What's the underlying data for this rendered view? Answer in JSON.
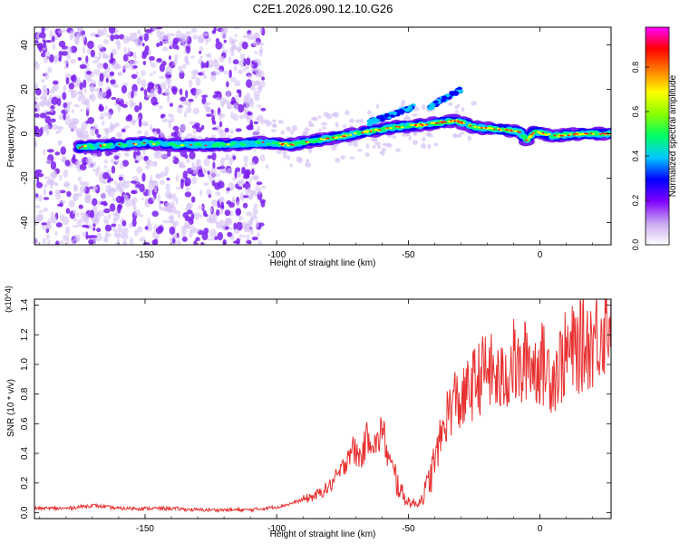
{
  "figure": {
    "title": "C2E1.2026.090.12.10.G26"
  },
  "colorbar": {
    "label": "Normalized spectral amplitude",
    "ticks": [
      "0.0",
      "0.2",
      "0.4",
      "0.6",
      "0.8"
    ],
    "colors": [
      "#ffffff",
      "#c8a8f0",
      "#8000ff",
      "#0000ff",
      "#00c8ff",
      "#00ff66",
      "#88ff00",
      "#ffff00",
      "#ff8000",
      "#ff0000",
      "#ff00ff"
    ]
  },
  "chart_data": [
    {
      "type": "heatmap",
      "title": "C2E1.2026.090.12.10.G26",
      "xlabel": "Height of straight line (km)",
      "ylabel": "Frequency (Hz)",
      "xlim": [
        -192,
        27
      ],
      "ylim": [
        -50,
        48
      ],
      "xticks": [
        "-150",
        "-100",
        "-50",
        "0"
      ],
      "yticks": [
        "-40",
        "-20",
        "0",
        "20",
        "40"
      ],
      "ridge": {
        "x": [
          -175,
          -160,
          -150,
          -140,
          -120,
          -105,
          -95,
          -85,
          -75,
          -65,
          -55,
          -45,
          -38,
          -32,
          -25,
          -15,
          -8,
          -5,
          -2,
          5,
          15,
          27
        ],
        "y": [
          -6,
          -5,
          -4,
          -5,
          -5,
          -4,
          -5,
          -3,
          -1,
          1,
          3,
          4,
          5,
          6,
          3,
          2,
          1,
          -3,
          1,
          -1,
          0,
          0
        ]
      },
      "branches": [
        {
          "x": [
            -65,
            -48
          ],
          "y": [
            5,
            12
          ]
        },
        {
          "x": [
            -42,
            -30
          ],
          "y": [
            12,
            20
          ]
        }
      ]
    },
    {
      "type": "line",
      "xlabel": "Height of straight line (km)",
      "ylabel": "SNR (10 * v/v)",
      "yscale_label": "(x10^4)",
      "xlim": [
        -192,
        27
      ],
      "ylim": [
        -0.04,
        1.44
      ],
      "xticks": [
        "-150",
        "-100",
        "-50",
        "0"
      ],
      "yticks": [
        "0.0",
        "0.2",
        "0.4",
        "0.6",
        "0.8",
        "1.0",
        "1.2",
        "1.4"
      ],
      "series": [
        {
          "name": "SNR",
          "color": "#e83030",
          "x": [
            -192,
            -180,
            -170,
            -160,
            -150,
            -140,
            -130,
            -120,
            -110,
            -105,
            -100,
            -95,
            -90,
            -85,
            -80,
            -75,
            -72,
            -68,
            -65,
            -62,
            -60,
            -58,
            -55,
            -52,
            -50,
            -47,
            -45,
            -43,
            -40,
            -38,
            -35,
            -32,
            -30,
            -27,
            -25,
            -20,
            -15,
            -10,
            -7,
            -5,
            -2,
            0,
            5,
            10,
            15,
            20,
            25,
            27
          ],
          "y": [
            0.03,
            0.03,
            0.05,
            0.03,
            0.03,
            0.03,
            0.02,
            0.02,
            0.02,
            0.03,
            0.04,
            0.06,
            0.09,
            0.12,
            0.18,
            0.3,
            0.45,
            0.38,
            0.55,
            0.45,
            0.6,
            0.4,
            0.25,
            0.12,
            0.08,
            0.06,
            0.1,
            0.18,
            0.35,
            0.5,
            0.7,
            0.8,
            0.75,
            0.85,
            0.9,
            1.0,
            0.9,
            1.05,
            0.95,
            1.1,
            1.0,
            1.05,
            0.95,
            1.1,
            1.15,
            1.2,
            1.32,
            1.38
          ]
        }
      ]
    }
  ]
}
